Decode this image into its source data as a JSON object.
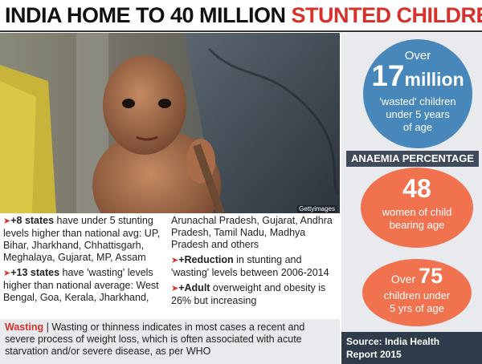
{
  "title": {
    "part1": "INDIA HOME TO 40 MILLION",
    "part2": "STUNTED CHILDREN"
  },
  "photo": {
    "credit": "Gettyimages"
  },
  "colors": {
    "accent_red": "#d6322b",
    "circle_blue": "#4787ba",
    "circle_orange": "#f0724f",
    "sidebar_bg": "#e8eaee",
    "dark_band": "#2f3a4a"
  },
  "wasted_stat": {
    "over": "Over",
    "number": "17",
    "unit": "million",
    "desc_line1": "'wasted' children",
    "desc_line2": "under 5 years",
    "desc_line3": "of age"
  },
  "anaemia": {
    "heading": "ANAEMIA PERCENTAGE",
    "women": {
      "number": "48",
      "line1": "women of child",
      "line2": "bearing age"
    },
    "children": {
      "over": "Over",
      "number": "75",
      "line1": "children under",
      "line2": "5 yrs of age"
    }
  },
  "source": {
    "line1": "Source: India Health",
    "line2": "Report 2015"
  },
  "points": {
    "p1_bold": "+8 states",
    "p1_text": " have under 5 stunting levels higher than national avg: UP, Bihar, Jharkhand, Chhattisgarh, Meghalaya, Gujarat, MP, Assam",
    "p2_bold": "+13 states",
    "p2_text": " have 'wasting' levels higher than national average: West Bengal, Goa, Kerala, Jharkhand,",
    "p2_cont": "Arunachal Pradesh, Gujarat, Andhra Pradesh, Tamil Nadu, Madhya Pradesh and others",
    "p3_bold": "+Reduction",
    "p3_text": " in stunting and 'wasting' levels between 2006-2014",
    "p4_bold": "+Adult",
    "p4_text": " overweight and obesity is 26% but increasing"
  },
  "wasting_note": {
    "label": "Wasting",
    "text": " | Wasting or thinness indicates in most cases a recent and severe process of weight loss, which is often associated with acute starvation and/or severe disease, as per WHO"
  }
}
